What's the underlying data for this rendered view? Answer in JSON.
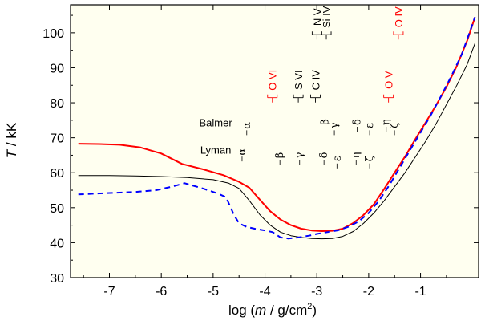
{
  "chart_data": {
    "type": "line",
    "xlabel_parts": [
      "log (",
      "m",
      " / g/cm",
      "2",
      ")"
    ],
    "ylabel_parts": [
      "T",
      " / kK"
    ],
    "xlim": [
      -7.75,
      0.12
    ],
    "ylim": [
      30,
      108
    ],
    "xticks": [
      -7,
      -6,
      -5,
      -4,
      -3,
      -2,
      -1
    ],
    "xtick_labels": [
      "-7",
      "-6",
      "-5",
      "-4",
      "-3",
      "-2",
      "-1"
    ],
    "yticks": [
      30,
      40,
      50,
      60,
      70,
      80,
      90,
      100
    ],
    "ytick_labels": [
      "30",
      "40",
      "50",
      "60",
      "70",
      "80",
      "90",
      "100"
    ],
    "grid": false,
    "plot_background": "#fffff0",
    "series": [
      {
        "color": "#ff0000",
        "style": "solid",
        "x": [
          -7.6,
          -7.2,
          -6.8,
          -6.4,
          -6.0,
          -5.6,
          -5.2,
          -4.8,
          -4.5,
          -4.3,
          -4.1,
          -3.9,
          -3.7,
          -3.5,
          -3.3,
          -3.1,
          -2.9,
          -2.7,
          -2.5,
          -2.3,
          -2.1,
          -1.9,
          -1.7,
          -1.5,
          -1.3,
          -1.1,
          -0.9,
          -0.7,
          -0.5,
          -0.3,
          -0.1,
          0.05
        ],
        "y": [
          68.3,
          68.2,
          68.0,
          67.2,
          65.5,
          62.5,
          61.0,
          59.3,
          57.4,
          55.7,
          52.3,
          49.0,
          46.6,
          45.0,
          44.0,
          43.5,
          43.3,
          43.4,
          44.0,
          45.6,
          47.9,
          51.0,
          55.4,
          60.0,
          64.6,
          69.6,
          74.4,
          79.3,
          84.5,
          90.5,
          97.8,
          104.5
        ]
      },
      {
        "color": "#000000",
        "style": "solid",
        "x": [
          -7.6,
          -7.0,
          -6.5,
          -6.0,
          -5.5,
          -5.0,
          -4.7,
          -4.5,
          -4.3,
          -4.1,
          -3.9,
          -3.7,
          -3.5,
          -3.3,
          -3.1,
          -2.9,
          -2.7,
          -2.5,
          -2.3,
          -2.1,
          -1.9,
          -1.7,
          -1.5,
          -1.3,
          -1.1,
          -0.9,
          -0.7,
          -0.5,
          -0.3,
          -0.1,
          0.05
        ],
        "y": [
          59.2,
          59.2,
          59.1,
          58.9,
          58.6,
          58.0,
          57.0,
          55.5,
          52.0,
          48.0,
          45.0,
          43.0,
          42.0,
          41.5,
          41.2,
          41.1,
          41.2,
          41.8,
          43.2,
          45.5,
          48.5,
          52.0,
          56.0,
          60.0,
          64.5,
          69.0,
          74.0,
          79.5,
          85.0,
          91.0,
          97.0
        ]
      },
      {
        "color": "#0000ff",
        "style": "dashed",
        "x": [
          -7.6,
          -7.0,
          -6.5,
          -6.1,
          -5.8,
          -5.55,
          -5.2,
          -4.9,
          -4.75,
          -4.6,
          -4.5,
          -4.35,
          -4.2,
          -4.0,
          -3.85,
          -3.7,
          -3.55,
          -3.35,
          -3.15,
          -3.0,
          -2.8,
          -2.6,
          -2.4,
          -2.2,
          -2.0,
          -1.8,
          -1.6,
          -1.4,
          -1.2,
          -1.0,
          -0.8,
          -0.6,
          -0.4,
          -0.2,
          0.05
        ],
        "y": [
          53.8,
          54.2,
          54.5,
          55.0,
          56.0,
          57.0,
          55.5,
          54.0,
          53.0,
          48.0,
          45.5,
          44.5,
          44.0,
          43.5,
          43.0,
          41.5,
          41.2,
          41.5,
          42.0,
          42.5,
          43.0,
          43.5,
          44.5,
          46.0,
          48.5,
          52.0,
          56.5,
          61.5,
          66.5,
          71.5,
          76.5,
          82.0,
          87.8,
          94.0,
          104.5
        ]
      }
    ],
    "line_annotations": {
      "series_labels": [
        {
          "text": "Balmer",
          "x": -4.95,
          "y": 73.3
        },
        {
          "text": "Lyman",
          "x": -4.95,
          "y": 65.5
        }
      ],
      "greek_marks": [
        {
          "text": "α",
          "x": -4.29,
          "y": 73.5,
          "color": "#000000"
        },
        {
          "text": "α",
          "x": -4.38,
          "y": 66.0,
          "color": "#000000"
        },
        {
          "text": "β",
          "x": -3.65,
          "y": 65.0,
          "color": "#000000"
        },
        {
          "text": "γ",
          "x": -3.27,
          "y": 65.0,
          "color": "#000000"
        },
        {
          "text": "δ",
          "x": -2.8,
          "y": 65.0,
          "color": "#000000"
        },
        {
          "text": "β",
          "x": -2.78,
          "y": 74.5,
          "color": "#000000"
        },
        {
          "text": "γ",
          "x": -2.6,
          "y": 73.5,
          "color": "#000000"
        },
        {
          "text": "ε",
          "x": -2.55,
          "y": 64.0,
          "color": "#000000"
        },
        {
          "text": "δ",
          "x": -2.16,
          "y": 74.5,
          "color": "#000000"
        },
        {
          "text": "ε",
          "x": -1.92,
          "y": 73.5,
          "color": "#000000"
        },
        {
          "text": "η",
          "x": -2.18,
          "y": 65.0,
          "color": "#000000"
        },
        {
          "text": "ζ",
          "x": -1.92,
          "y": 64.0,
          "color": "#000000"
        },
        {
          "text": "η",
          "x": -1.6,
          "y": 74.5,
          "color": "#000000"
        },
        {
          "text": "ζ",
          "x": -1.44,
          "y": 73.5,
          "color": "#000000"
        }
      ],
      "ions": [
        {
          "text": "O VI",
          "x": -3.78,
          "y": 86.5,
          "color": "#ff0000"
        },
        {
          "text": "S VI",
          "x": -3.28,
          "y": 86.5,
          "color": "#000000"
        },
        {
          "text": "C IV",
          "x": -2.95,
          "y": 86.5,
          "color": "#000000"
        },
        {
          "text": "N V",
          "x": -2.92,
          "y": 104.5,
          "color": "#000000"
        },
        {
          "text": "Si IV",
          "x": -2.74,
          "y": 104.5,
          "color": "#000000"
        },
        {
          "text": "O V",
          "x": -1.54,
          "y": 86.5,
          "color": "#ff0000"
        },
        {
          "text": "O IV",
          "x": -1.35,
          "y": 104.5,
          "color": "#ff0000"
        }
      ]
    }
  }
}
